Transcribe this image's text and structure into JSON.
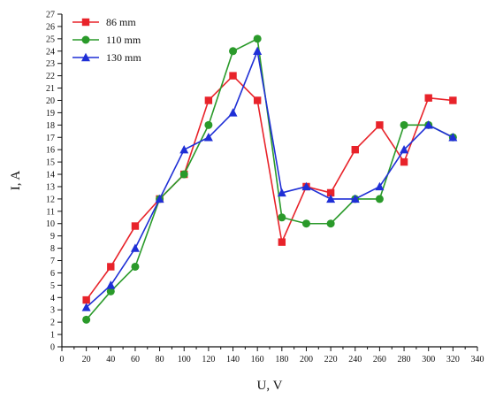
{
  "chart_data": {
    "type": "line",
    "title": "",
    "xlabel": "U, V",
    "ylabel": "I, A",
    "xlim": [
      0,
      340
    ],
    "ylim": [
      0,
      27
    ],
    "x_ticks": [
      0,
      20,
      40,
      60,
      80,
      100,
      120,
      140,
      160,
      180,
      200,
      220,
      240,
      260,
      280,
      300,
      320,
      340
    ],
    "y_ticks": [
      0,
      1,
      2,
      3,
      4,
      5,
      6,
      7,
      8,
      9,
      10,
      11,
      12,
      13,
      14,
      15,
      16,
      17,
      18,
      19,
      20,
      21,
      22,
      23,
      24,
      25,
      26,
      27
    ],
    "grid": false,
    "legend_position": "top-left",
    "series": [
      {
        "name": "86 mm",
        "color": "#e8232a",
        "marker": "square",
        "x": [
          20,
          40,
          60,
          80,
          100,
          120,
          140,
          160,
          180,
          200,
          220,
          240,
          260,
          280,
          300,
          320
        ],
        "y": [
          3.8,
          6.5,
          9.8,
          12,
          14,
          20,
          22,
          20,
          8.5,
          13,
          12.5,
          16,
          18,
          15,
          20.2,
          20
        ]
      },
      {
        "name": "110 mm",
        "color": "#2a9a2a",
        "marker": "circle",
        "x": [
          20,
          40,
          60,
          80,
          100,
          120,
          140,
          160,
          180,
          200,
          220,
          240,
          260,
          280,
          300,
          320
        ],
        "y": [
          2.2,
          4.5,
          6.5,
          12,
          14,
          18,
          24,
          25,
          10.5,
          10,
          10,
          12,
          12,
          18,
          18,
          17
        ]
      },
      {
        "name": "130 mm",
        "color": "#1f2fd6",
        "marker": "triangle",
        "x": [
          20,
          40,
          60,
          80,
          100,
          120,
          140,
          160,
          180,
          200,
          220,
          240,
          260,
          280,
          300,
          320
        ],
        "y": [
          3.2,
          5,
          8,
          12,
          16,
          17,
          19,
          24,
          12.5,
          13,
          12,
          12,
          13,
          16,
          18,
          17
        ]
      }
    ]
  }
}
